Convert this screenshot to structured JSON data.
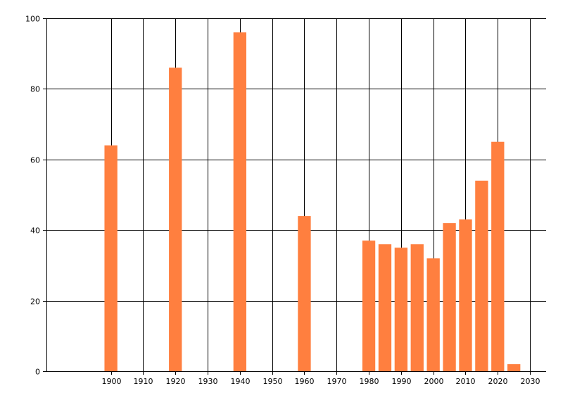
{
  "chart_data": {
    "type": "bar",
    "title": "",
    "xlabel": "",
    "ylabel": "",
    "x": [
      1900,
      1920,
      1940,
      1960,
      1980,
      1985,
      1990,
      1995,
      2000,
      2005,
      2010,
      2015,
      2020,
      2025
    ],
    "values": [
      64,
      86,
      96,
      44,
      37,
      36,
      35,
      36,
      32,
      42,
      43,
      54,
      65,
      2
    ],
    "xlim": [
      1880,
      2035
    ],
    "ylim": [
      0,
      100
    ],
    "x_ticks": [
      1900,
      1910,
      1920,
      1930,
      1940,
      1950,
      1960,
      1970,
      1980,
      1990,
      2000,
      2010,
      2020,
      2030
    ],
    "y_ticks": [
      0,
      20,
      40,
      60,
      80,
      100
    ],
    "bar_width_years": 4,
    "grid": true,
    "legend": "none",
    "bar_color": "#ff7f3f",
    "grid_color": "#000000"
  }
}
